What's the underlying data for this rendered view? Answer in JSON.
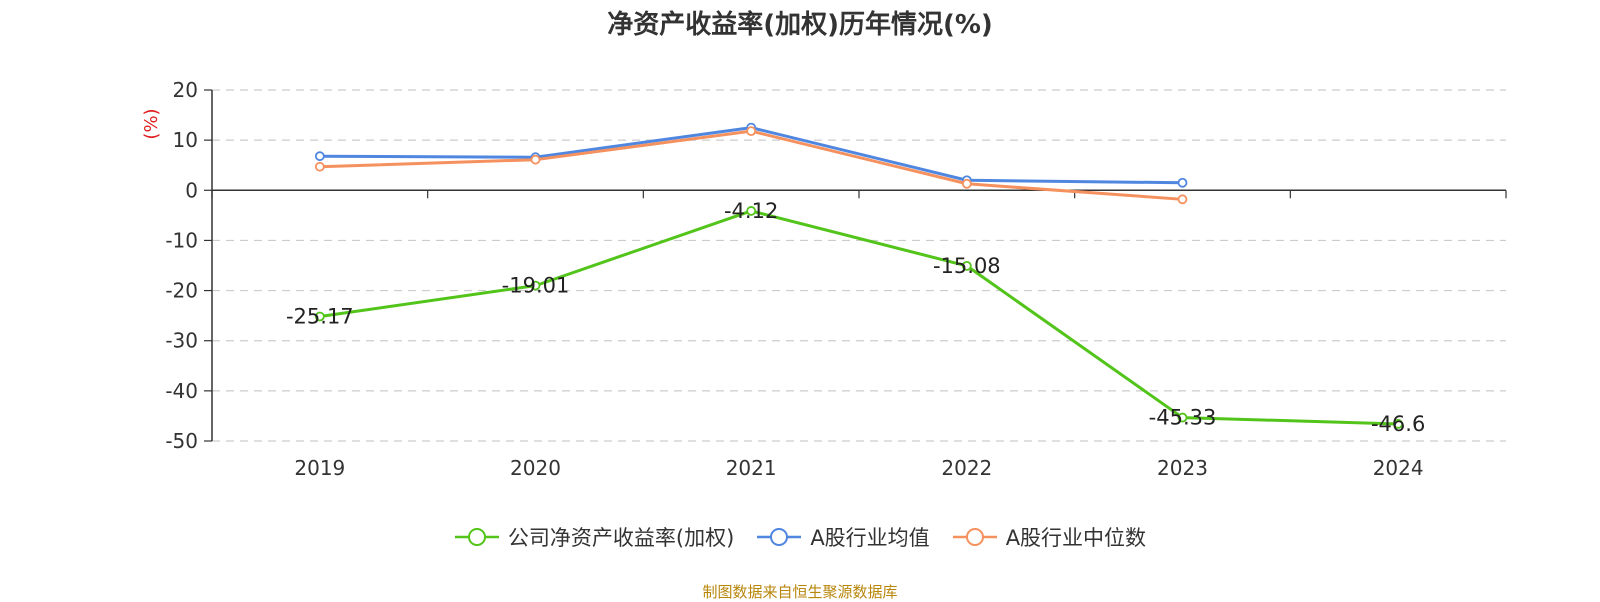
{
  "chart_data": {
    "type": "line",
    "title": "净资产收益率(加权)历年情况(%)",
    "ylabel": "(%)",
    "xlabel": "",
    "ylim": [
      -50,
      20
    ],
    "yticks": [
      20,
      10,
      0,
      -10,
      -20,
      -30,
      -40,
      -50
    ],
    "categories": [
      "2019",
      "2020",
      "2021",
      "2022",
      "2023",
      "2024"
    ],
    "grid": true,
    "legend_position": "bottom",
    "series": [
      {
        "name": "公司净资产收益率(加权)",
        "color": "#52c41a",
        "values": [
          -25.17,
          -19.01,
          -4.12,
          -15.08,
          -45.33,
          -46.6
        ],
        "labels": [
          "-25.17",
          "-19.01",
          "-4.12",
          "-15.08",
          "-45.33",
          "-46.6"
        ]
      },
      {
        "name": "A股行业均值",
        "color": "#4f86e0",
        "values": [
          6.8,
          6.6,
          12.5,
          2.0,
          1.5,
          null
        ]
      },
      {
        "name": "A股行业中位数",
        "color": "#f5915e",
        "values": [
          4.7,
          6.1,
          11.8,
          1.3,
          -1.8,
          null
        ]
      }
    ]
  },
  "source_note": "制图数据来自恒生聚源数据库"
}
